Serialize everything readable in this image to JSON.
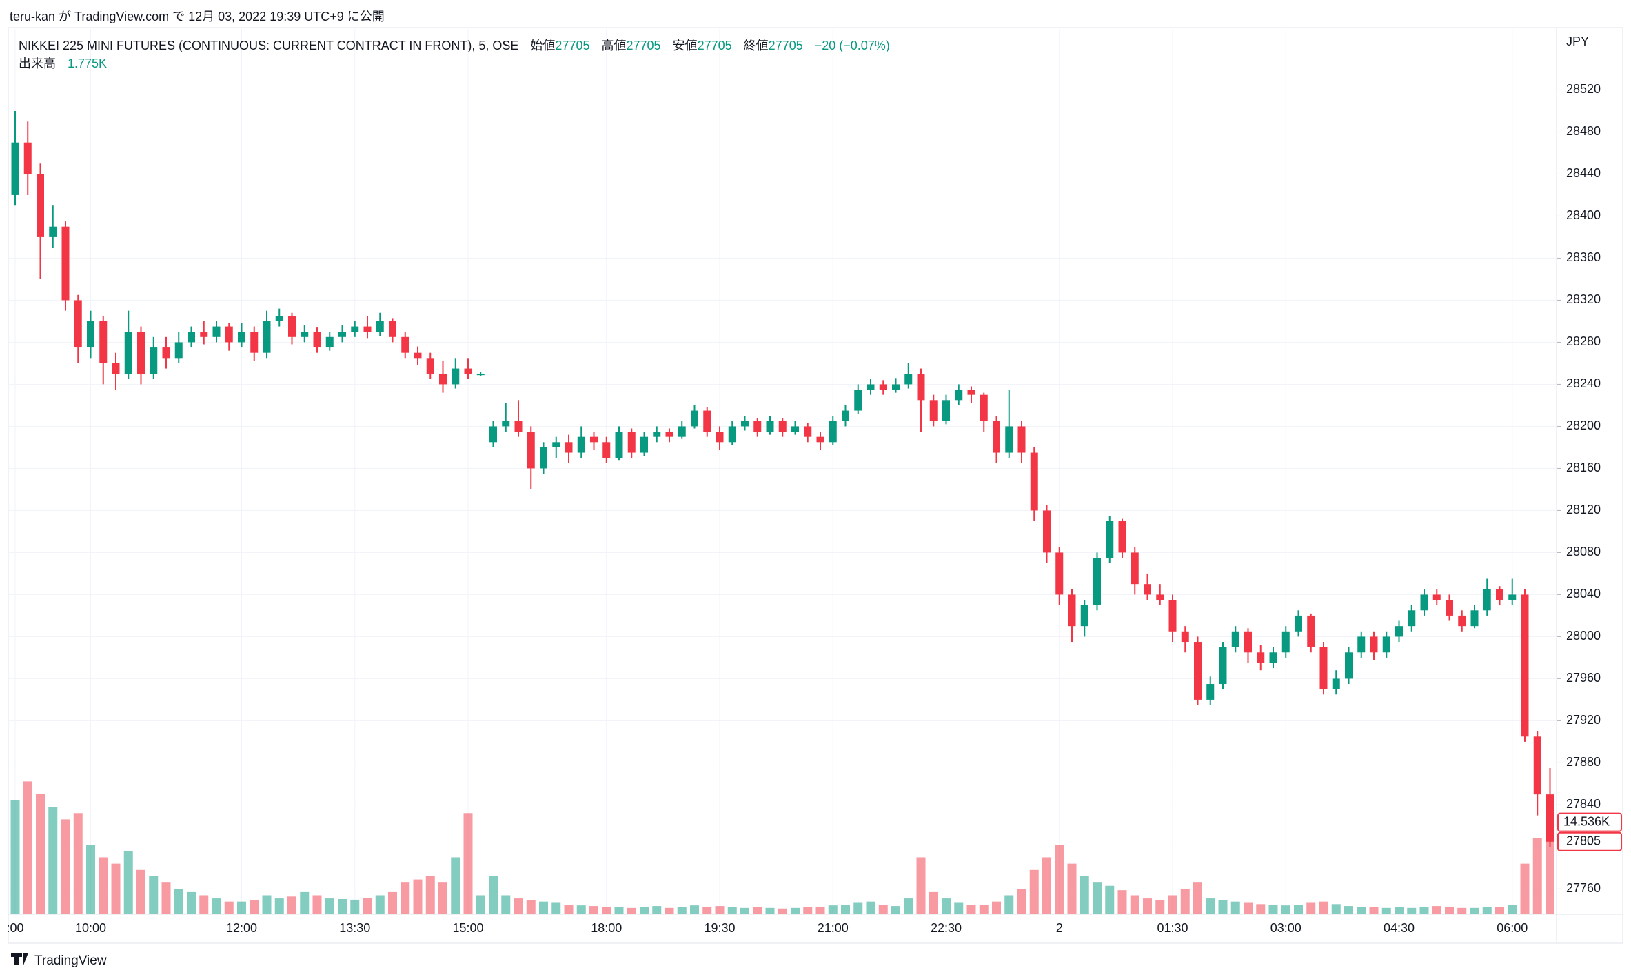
{
  "header": {
    "published": "teru-kan が TradingView.com で 12月 03, 2022 19:39 UTC+9 に公開"
  },
  "chart_data": {
    "type": "candlestick",
    "title": "NIKKEI 225 MINI FUTURES (CONTINUOUS: CURRENT CONTRACT IN FRONT), 5, OSE",
    "legend": {
      "open_label": "始値",
      "open": 27705,
      "high_label": "高値",
      "high": 27705,
      "low_label": "安値",
      "low": 27705,
      "close_label": "終値",
      "close": 27705,
      "change": "−20 (−0.07%)",
      "volume_label": "出来高",
      "volume": "1.775K"
    },
    "currency": "JPY",
    "categories": [
      ":00",
      null,
      null,
      null,
      null,
      null,
      "10:00",
      null,
      null,
      null,
      null,
      null,
      null,
      null,
      null,
      null,
      null,
      null,
      "12:00",
      null,
      null,
      null,
      null,
      null,
      null,
      null,
      null,
      "13:30",
      null,
      null,
      null,
      null,
      null,
      null,
      null,
      null,
      "15:00",
      null,
      null,
      null,
      null,
      null,
      null,
      null,
      null,
      null,
      null,
      "18:00",
      null,
      null,
      null,
      null,
      null,
      null,
      null,
      null,
      "19:30",
      null,
      null,
      null,
      null,
      null,
      null,
      null,
      null,
      "21:00",
      null,
      null,
      null,
      null,
      null,
      null,
      null,
      null,
      "22:30",
      null,
      null,
      null,
      null,
      null,
      null,
      null,
      null,
      "2",
      null,
      null,
      null,
      null,
      null,
      null,
      null,
      null,
      "01:30",
      null,
      null,
      null,
      null,
      null,
      null,
      null,
      null,
      "03:00",
      null,
      null,
      null,
      null,
      null,
      null,
      null,
      null,
      "04:30",
      null,
      null,
      null,
      null,
      null,
      null,
      null,
      null,
      "06:00",
      null,
      null,
      null
    ],
    "open": [
      28420,
      28470,
      28440,
      28380,
      28390,
      28320,
      28275,
      28300,
      28260,
      28250,
      28290,
      28250,
      28275,
      28265,
      28280,
      28290,
      28285,
      28295,
      28280,
      28290,
      28270,
      28300,
      28305,
      28285,
      28290,
      28275,
      28285,
      28290,
      28295,
      28290,
      28300,
      28285,
      28270,
      28265,
      28250,
      28240,
      28255,
      28250,
      28185,
      28200,
      28205,
      28195,
      28160,
      28180,
      28185,
      28175,
      28190,
      28185,
      28170,
      28195,
      28175,
      28190,
      28195,
      28190,
      28200,
      28215,
      28195,
      28185,
      28200,
      28205,
      28195,
      28205,
      28195,
      28200,
      28190,
      28185,
      28205,
      28215,
      28235,
      28240,
      28235,
      28240,
      28250,
      28225,
      28205,
      28225,
      28235,
      28230,
      28205,
      28175,
      28200,
      28175,
      28120,
      28080,
      28040,
      28010,
      28030,
      28075,
      28110,
      28080,
      28050,
      28040,
      28035,
      28005,
      27995,
      27940,
      27955,
      27990,
      28005,
      27985,
      27975,
      27985,
      28005,
      28020,
      27990,
      27950,
      27960,
      27985,
      28000,
      27985,
      28000,
      28010,
      28025,
      28040,
      28035,
      28020,
      28010,
      28025,
      28045,
      28035,
      28040,
      27905,
      27850
    ],
    "high": [
      28500,
      28490,
      28450,
      28410,
      28395,
      28325,
      28310,
      28305,
      28270,
      28310,
      28295,
      28285,
      28285,
      28290,
      28295,
      28300,
      28300,
      28298,
      28298,
      28295,
      28310,
      28312,
      28308,
      28296,
      28294,
      28290,
      28296,
      28300,
      28305,
      28308,
      28303,
      28290,
      28276,
      28270,
      28262,
      28265,
      28265,
      28252,
      28205,
      28222,
      28225,
      28200,
      28185,
      28190,
      28192,
      28200,
      28195,
      28190,
      28200,
      28198,
      28195,
      28200,
      28198,
      28205,
      28220,
      28218,
      28200,
      28205,
      28210,
      28208,
      28210,
      28208,
      28205,
      28203,
      28195,
      28210,
      28220,
      28240,
      28245,
      28244,
      28246,
      28260,
      28255,
      28230,
      28230,
      28240,
      28238,
      28232,
      28210,
      28235,
      28205,
      28180,
      28125,
      28085,
      28045,
      28035,
      28080,
      28115,
      28112,
      28085,
      28060,
      28050,
      28040,
      28010,
      28000,
      27962,
      27995,
      28010,
      28008,
      27992,
      27990,
      28010,
      28025,
      28022,
      27995,
      27968,
      27990,
      28005,
      28005,
      28005,
      28015,
      28030,
      28045,
      28045,
      28040,
      28025,
      28030,
      28055,
      28048,
      28055,
      28045,
      27910,
      27875
    ],
    "low": [
      28410,
      28420,
      28340,
      28370,
      28310,
      28260,
      28265,
      28240,
      28235,
      28245,
      28240,
      28245,
      28255,
      28260,
      28275,
      28278,
      28280,
      28272,
      28275,
      28262,
      28265,
      28295,
      28278,
      28280,
      28270,
      28272,
      28280,
      28285,
      28284,
      28286,
      28280,
      28265,
      28258,
      28245,
      28232,
      28236,
      28245,
      28248,
      28180,
      28195,
      28190,
      28140,
      28155,
      28170,
      28165,
      28170,
      28178,
      28165,
      28168,
      28170,
      28172,
      28185,
      28185,
      28188,
      28198,
      28190,
      28178,
      28182,
      28196,
      28190,
      28192,
      28190,
      28192,
      28185,
      28178,
      28182,
      28200,
      28212,
      28230,
      28230,
      28232,
      28236,
      28195,
      28200,
      28202,
      28220,
      28222,
      28195,
      28165,
      28170,
      28165,
      28110,
      28070,
      28030,
      27995,
      28000,
      28025,
      28070,
      28075,
      28040,
      28035,
      28030,
      27995,
      27985,
      27935,
      27935,
      27950,
      27985,
      27975,
      27968,
      27970,
      27980,
      28000,
      27985,
      27945,
      27945,
      27955,
      27980,
      27978,
      27980,
      27995,
      28005,
      28020,
      28030,
      28015,
      28005,
      28008,
      28020,
      28030,
      28030,
      27900,
      27830,
      27800
    ],
    "close": [
      28470,
      28440,
      28380,
      28390,
      28320,
      28275,
      28300,
      28260,
      28250,
      28290,
      28250,
      28275,
      28265,
      28280,
      28290,
      28285,
      28295,
      28280,
      28290,
      28270,
      28300,
      28305,
      28285,
      28290,
      28275,
      28285,
      28290,
      28295,
      28290,
      28300,
      28285,
      28270,
      28265,
      28250,
      28240,
      28255,
      28250,
      28250,
      28200,
      28205,
      28195,
      28160,
      28180,
      28185,
      28175,
      28190,
      28185,
      28170,
      28195,
      28175,
      28190,
      28195,
      28190,
      28200,
      28215,
      28195,
      28185,
      28200,
      28205,
      28195,
      28205,
      28195,
      28200,
      28190,
      28185,
      28205,
      28215,
      28235,
      28240,
      28235,
      28240,
      28250,
      28225,
      28205,
      28225,
      28235,
      28230,
      28205,
      28175,
      28200,
      28175,
      28120,
      28080,
      28040,
      28010,
      28030,
      28075,
      28110,
      28080,
      28050,
      28040,
      28035,
      28005,
      27995,
      27940,
      27955,
      27990,
      28005,
      27985,
      27975,
      27985,
      28005,
      28020,
      27990,
      27950,
      27960,
      27985,
      28000,
      27985,
      28000,
      28010,
      28025,
      28040,
      28035,
      28020,
      28010,
      28025,
      28045,
      28035,
      28040,
      27905,
      27850,
      27805
    ],
    "volume": [
      18000,
      21000,
      19000,
      17000,
      15000,
      16000,
      11000,
      9000,
      8000,
      10000,
      7000,
      6000,
      5000,
      4000,
      3500,
      3000,
      2500,
      2000,
      2000,
      2200,
      3000,
      2500,
      2800,
      3500,
      3000,
      2500,
      2400,
      2300,
      2600,
      3000,
      3500,
      5000,
      5500,
      6000,
      5000,
      9000,
      16000,
      3000,
      6000,
      3000,
      2500,
      2200,
      2000,
      1800,
      1500,
      1400,
      1300,
      1200,
      1100,
      1000,
      1200,
      1300,
      1000,
      1100,
      1400,
      1200,
      1300,
      1200,
      1000,
      1100,
      1000,
      900,
      1000,
      1100,
      1200,
      1400,
      1500,
      1800,
      2000,
      1500,
      1300,
      2500,
      9000,
      3500,
      2500,
      1800,
      1500,
      1500,
      2000,
      3000,
      4000,
      7000,
      9000,
      11000,
      8000,
      6000,
      5000,
      4500,
      3800,
      3000,
      2500,
      2200,
      3000,
      4000,
      5000,
      2500,
      2200,
      2000,
      1800,
      1600,
      1500,
      1400,
      1500,
      1800,
      2000,
      1600,
      1300,
      1200,
      1100,
      1000,
      1100,
      1000,
      1200,
      1300,
      1100,
      1000,
      1000,
      1200,
      1100,
      1500,
      8000,
      12000,
      14536
    ],
    "last_volume_label": "14.536K",
    "up_color": "#089981",
    "down_color": "#f23645",
    "ylim": [
      27736,
      28578
    ],
    "yticks": [
      27760,
      27800,
      27840,
      27880,
      27920,
      27960,
      28000,
      28040,
      28080,
      28120,
      28160,
      28200,
      28240,
      28280,
      28320,
      28360,
      28400,
      28440,
      28480,
      28520
    ],
    "y2lim": [
      0,
      140000
    ],
    "grid": true
  },
  "footer": {
    "brand": "TradingView"
  }
}
